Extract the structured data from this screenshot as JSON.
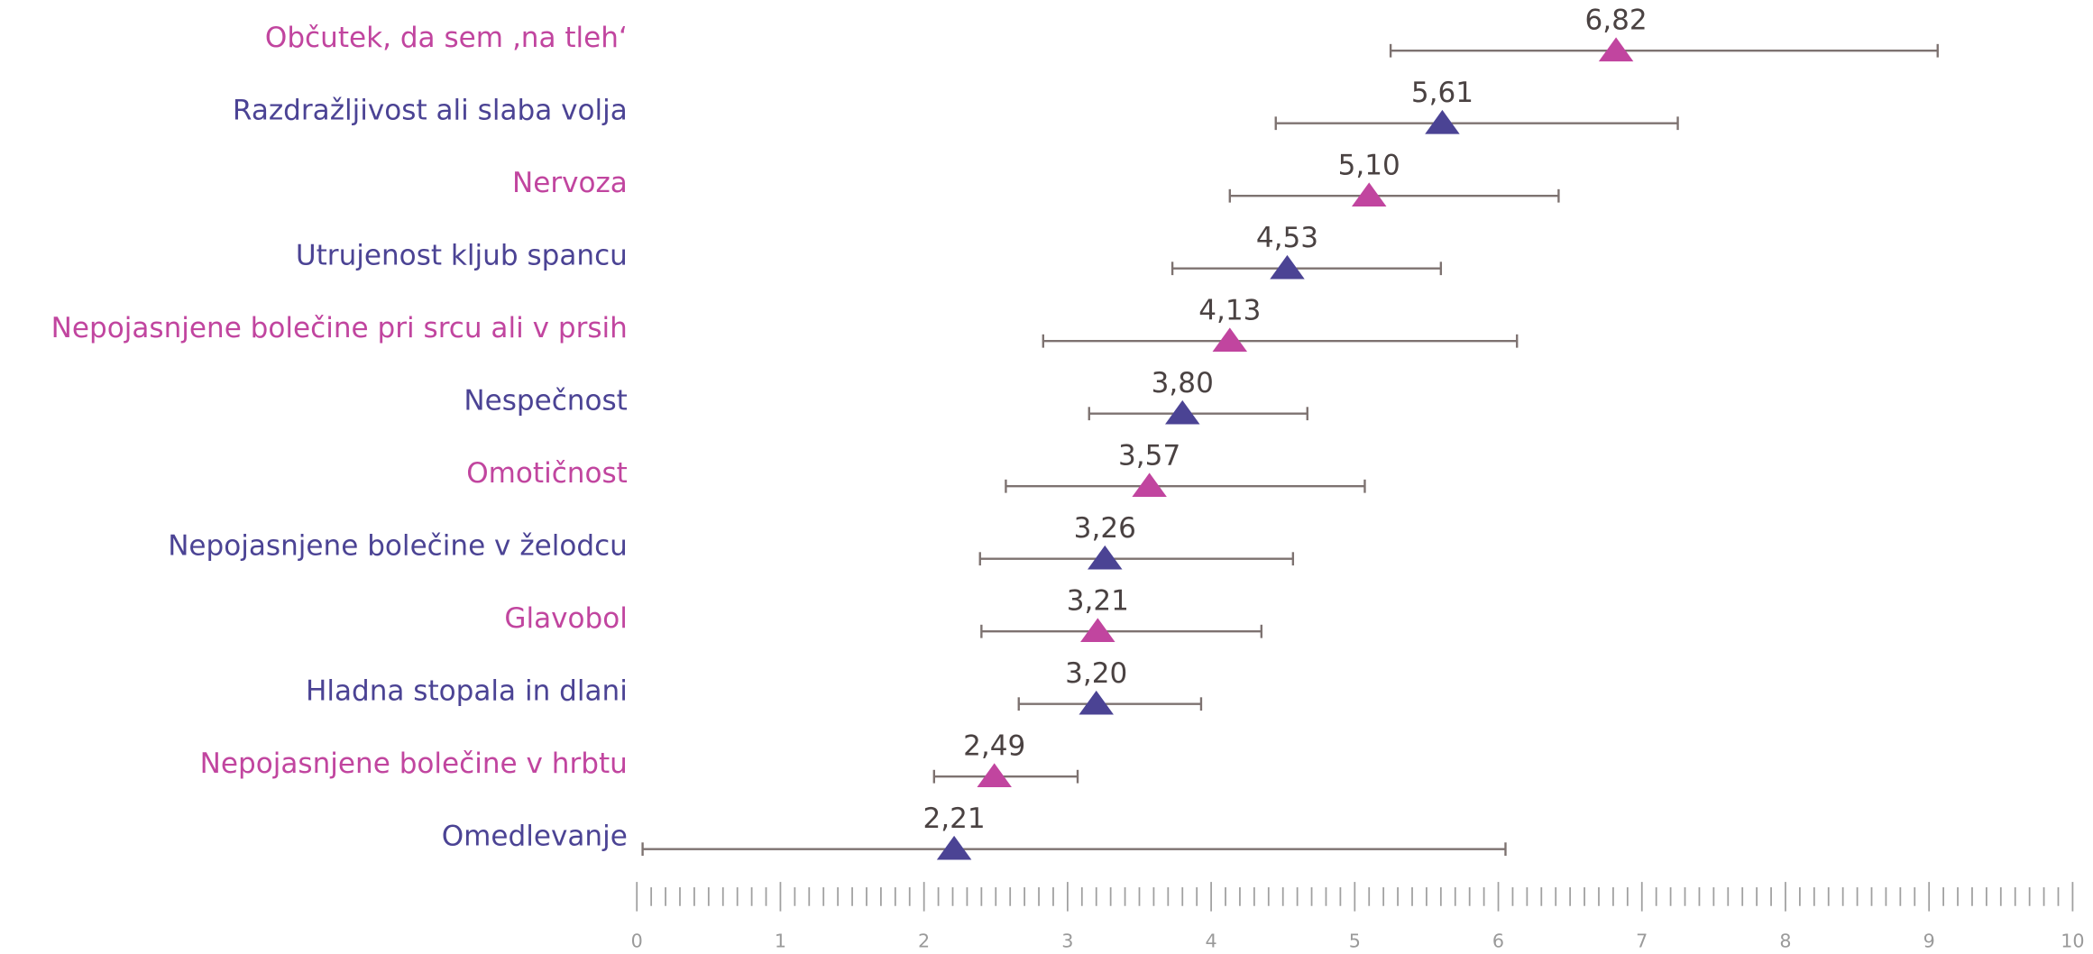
{
  "chart_data": {
    "type": "errorbar",
    "categories": [
      "Občutek, da sem ‚na tleh‘",
      "Razdražljivost ali slaba volja",
      "Nervoza",
      "Utrujenost kljub spancu",
      "Nepojasnjene bolečine pri srcu ali v prsih",
      "Nespečnost",
      "Omotičnost",
      "Nepojasnjene bolečine v želodcu",
      "Glavobol",
      "Hladna stopala in dlani",
      "Nepojasnjene bolečine v hrbtu",
      "Omedlevanje"
    ],
    "colors": [
      "#c1459f",
      "#4b4394",
      "#c1459f",
      "#4b4394",
      "#c1459f",
      "#4b4394",
      "#c1459f",
      "#4b4394",
      "#c1459f",
      "#4b4394",
      "#c1459f",
      "#4b4394"
    ],
    "values": [
      6.82,
      5.61,
      5.1,
      4.53,
      4.13,
      3.8,
      3.57,
      3.26,
      3.21,
      3.2,
      2.49,
      2.21
    ],
    "value_labels": [
      "6,82",
      "5,61",
      "5,10",
      "4,53",
      "4,13",
      "3,80",
      "3,57",
      "3,26",
      "3,21",
      "3,20",
      "2,49",
      "2,21"
    ],
    "lower": [
      5.25,
      4.45,
      4.13,
      3.73,
      2.83,
      3.15,
      2.57,
      2.39,
      2.4,
      2.66,
      2.07,
      0.04
    ],
    "upper": [
      9.06,
      7.25,
      6.42,
      5.6,
      6.13,
      4.67,
      5.07,
      4.57,
      4.35,
      3.93,
      3.07,
      6.05
    ],
    "xlim": [
      0,
      10
    ],
    "xticks": [
      0,
      1,
      2,
      3,
      4,
      5,
      6,
      7,
      8,
      9,
      10
    ],
    "xminorticks": [
      0.1,
      0.2,
      0.3,
      0.4,
      0.5,
      0.6,
      0.7,
      0.8,
      0.9,
      1.1,
      1.2,
      1.3,
      1.4,
      1.5,
      1.6,
      1.7,
      1.8,
      1.9,
      2.1,
      2.2,
      2.3,
      2.4,
      2.5,
      2.6,
      2.7,
      2.8,
      2.9,
      3.1,
      3.2,
      3.3,
      3.4,
      3.5,
      3.6,
      3.7,
      3.8,
      3.9,
      4.1,
      4.2,
      4.3,
      4.4,
      4.5,
      4.6,
      4.7,
      4.8,
      4.9,
      5.1,
      5.2,
      5.3,
      5.4,
      5.5,
      5.6,
      5.7,
      5.8,
      5.9,
      6.1,
      6.2,
      6.3,
      6.4,
      6.5,
      6.6,
      6.7,
      6.8,
      6.9,
      7.1,
      7.2,
      7.3,
      7.4,
      7.5,
      7.6,
      7.7,
      7.8,
      7.9,
      8.1,
      8.2,
      8.3,
      8.4,
      8.5,
      8.6,
      8.7,
      8.8,
      8.9,
      9.1,
      9.2,
      9.3,
      9.4,
      9.5,
      9.6,
      9.7,
      9.8,
      9.9
    ]
  }
}
